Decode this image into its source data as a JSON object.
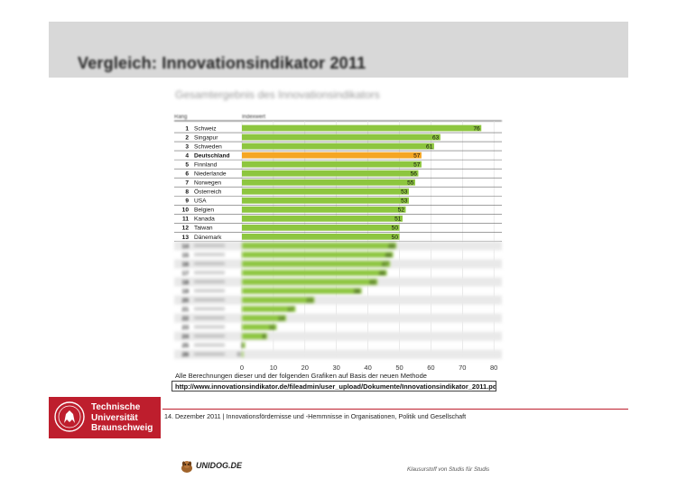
{
  "slide": {
    "title": "Vergleich: Innovationsindikator 2011",
    "subtitle": "Gesamtergebnis des Innovationsindikators",
    "note": "Alle Berechnungen dieser und der folgenden Grafiken auf Basis der neuen Methode",
    "url": "http://www.innovationsindikator.de/fileadmin/user_upload/Dokumente/Innovationsindikator_2011.pdf",
    "footer": "14. Dezember 2011 | Innovationsfördernisse und -Hemmnisse in Organisationen, Politik und Gesellschaft",
    "logo": {
      "line1": "Technische",
      "line2": "Universität",
      "line3": "Braunschweig"
    },
    "brand": "UNIDOG.DE",
    "studio_note": "Klausurstoff von Studis für Studis"
  },
  "colors": {
    "bar": "#8dc63f",
    "highlight": "#f5a623",
    "header_band": "#d8d8d8",
    "brand_red": "#be1e2d"
  },
  "chart_data": {
    "type": "bar",
    "orientation": "horizontal",
    "title": "Gesamtergebnis des Innovationsindikators",
    "column_headers": [
      "Rang",
      "Indexwert"
    ],
    "xlim": [
      0,
      80
    ],
    "x_ticks": [
      0,
      10,
      20,
      30,
      40,
      50,
      60,
      70,
      80
    ],
    "grid": true,
    "highlight_category": "Deutschland",
    "rows": [
      {
        "rank": "1",
        "name": "Schweiz",
        "value": 76
      },
      {
        "rank": "2",
        "name": "Singapur",
        "value": 63
      },
      {
        "rank": "3",
        "name": "Schweden",
        "value": 61
      },
      {
        "rank": "4",
        "name": "Deutschland",
        "value": 57
      },
      {
        "rank": "5",
        "name": "Finnland",
        "value": 57
      },
      {
        "rank": "6",
        "name": "Niederlande",
        "value": 56
      },
      {
        "rank": "7",
        "name": "Norwegen",
        "value": 55
      },
      {
        "rank": "8",
        "name": "Österreich",
        "value": 53
      },
      {
        "rank": "9",
        "name": "USA",
        "value": 53
      },
      {
        "rank": "10",
        "name": "Belgien",
        "value": 52
      },
      {
        "rank": "11",
        "name": "Kanada",
        "value": 51
      },
      {
        "rank": "12",
        "name": "Taiwan",
        "value": 50
      },
      {
        "rank": "13",
        "name": "Dänemark",
        "value": 50
      },
      {
        "rank": "14",
        "name": "",
        "value": 49
      },
      {
        "rank": "15",
        "name": "",
        "value": 48
      },
      {
        "rank": "16",
        "name": "",
        "value": 47
      },
      {
        "rank": "17",
        "name": "",
        "value": 46
      },
      {
        "rank": "18",
        "name": "",
        "value": 43
      },
      {
        "rank": "19",
        "name": "",
        "value": 38
      },
      {
        "rank": "20",
        "name": "",
        "value": 23
      },
      {
        "rank": "21",
        "name": "",
        "value": 17
      },
      {
        "rank": "22",
        "name": "",
        "value": 14
      },
      {
        "rank": "23",
        "name": "",
        "value": 11
      },
      {
        "rank": "24",
        "name": "",
        "value": 8
      },
      {
        "rank": "25",
        "name": "",
        "value": 1
      },
      {
        "rank": "26",
        "name": "",
        "value": 0
      }
    ]
  }
}
